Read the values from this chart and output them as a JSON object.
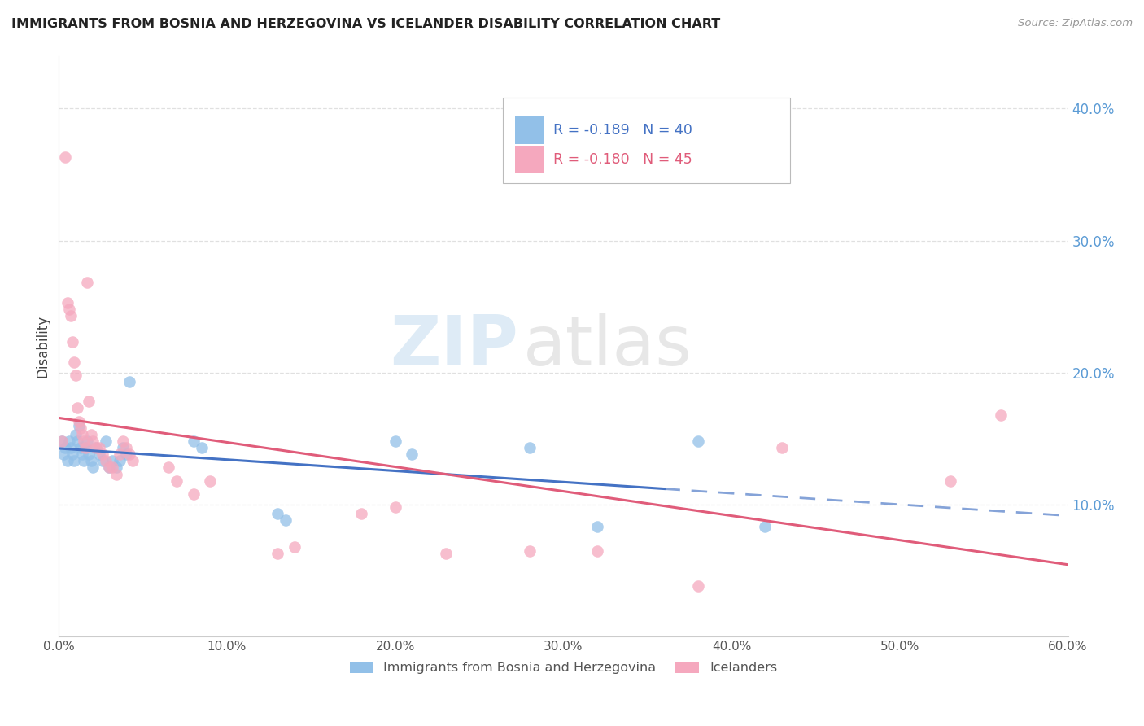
{
  "title": "IMMIGRANTS FROM BOSNIA AND HERZEGOVINA VS ICELANDER DISABILITY CORRELATION CHART",
  "source": "Source: ZipAtlas.com",
  "ylabel": "Disability",
  "xlim": [
    0.0,
    0.6
  ],
  "ylim": [
    0.0,
    0.44
  ],
  "xticks": [
    0.0,
    0.1,
    0.2,
    0.3,
    0.4,
    0.5,
    0.6
  ],
  "yticks_right": [
    0.1,
    0.2,
    0.3,
    0.4
  ],
  "blue_label": "Immigrants from Bosnia and Herzegovina",
  "pink_label": "Icelanders",
  "blue_R": -0.189,
  "blue_N": 40,
  "pink_R": -0.18,
  "pink_N": 45,
  "blue_color": "#92c0e8",
  "pink_color": "#f5a8be",
  "blue_trend_color": "#4472c4",
  "pink_trend_color": "#e05c7a",
  "blue_scatter": [
    [
      0.002,
      0.148
    ],
    [
      0.003,
      0.138
    ],
    [
      0.004,
      0.143
    ],
    [
      0.005,
      0.133
    ],
    [
      0.006,
      0.148
    ],
    [
      0.007,
      0.143
    ],
    [
      0.008,
      0.138
    ],
    [
      0.009,
      0.133
    ],
    [
      0.01,
      0.153
    ],
    [
      0.011,
      0.148
    ],
    [
      0.012,
      0.16
    ],
    [
      0.013,
      0.143
    ],
    [
      0.014,
      0.138
    ],
    [
      0.015,
      0.133
    ],
    [
      0.016,
      0.143
    ],
    [
      0.017,
      0.148
    ],
    [
      0.018,
      0.138
    ],
    [
      0.019,
      0.133
    ],
    [
      0.02,
      0.128
    ],
    [
      0.022,
      0.143
    ],
    [
      0.024,
      0.138
    ],
    [
      0.026,
      0.133
    ],
    [
      0.028,
      0.148
    ],
    [
      0.03,
      0.128
    ],
    [
      0.032,
      0.133
    ],
    [
      0.034,
      0.128
    ],
    [
      0.036,
      0.133
    ],
    [
      0.038,
      0.143
    ],
    [
      0.04,
      0.138
    ],
    [
      0.042,
      0.193
    ],
    [
      0.08,
      0.148
    ],
    [
      0.085,
      0.143
    ],
    [
      0.13,
      0.093
    ],
    [
      0.135,
      0.088
    ],
    [
      0.2,
      0.148
    ],
    [
      0.21,
      0.138
    ],
    [
      0.28,
      0.143
    ],
    [
      0.32,
      0.083
    ],
    [
      0.38,
      0.148
    ],
    [
      0.42,
      0.083
    ]
  ],
  "pink_scatter": [
    [
      0.002,
      0.148
    ],
    [
      0.004,
      0.363
    ],
    [
      0.005,
      0.253
    ],
    [
      0.006,
      0.248
    ],
    [
      0.007,
      0.243
    ],
    [
      0.008,
      0.223
    ],
    [
      0.009,
      0.208
    ],
    [
      0.01,
      0.198
    ],
    [
      0.011,
      0.173
    ],
    [
      0.012,
      0.163
    ],
    [
      0.013,
      0.158
    ],
    [
      0.014,
      0.153
    ],
    [
      0.015,
      0.148
    ],
    [
      0.016,
      0.143
    ],
    [
      0.017,
      0.268
    ],
    [
      0.018,
      0.178
    ],
    [
      0.019,
      0.153
    ],
    [
      0.02,
      0.148
    ],
    [
      0.022,
      0.143
    ],
    [
      0.024,
      0.143
    ],
    [
      0.026,
      0.138
    ],
    [
      0.028,
      0.133
    ],
    [
      0.03,
      0.128
    ],
    [
      0.032,
      0.128
    ],
    [
      0.034,
      0.123
    ],
    [
      0.036,
      0.138
    ],
    [
      0.038,
      0.148
    ],
    [
      0.04,
      0.143
    ],
    [
      0.042,
      0.138
    ],
    [
      0.044,
      0.133
    ],
    [
      0.065,
      0.128
    ],
    [
      0.07,
      0.118
    ],
    [
      0.08,
      0.108
    ],
    [
      0.09,
      0.118
    ],
    [
      0.13,
      0.063
    ],
    [
      0.14,
      0.068
    ],
    [
      0.18,
      0.093
    ],
    [
      0.2,
      0.098
    ],
    [
      0.23,
      0.063
    ],
    [
      0.28,
      0.065
    ],
    [
      0.32,
      0.065
    ],
    [
      0.38,
      0.038
    ],
    [
      0.43,
      0.143
    ],
    [
      0.53,
      0.118
    ],
    [
      0.56,
      0.168
    ]
  ],
  "watermark_zip": "ZIP",
  "watermark_atlas": "atlas",
  "background_color": "#ffffff",
  "grid_color": "#e0e0e0"
}
